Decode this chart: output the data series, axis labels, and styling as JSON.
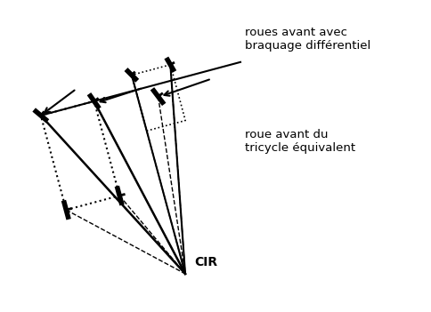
{
  "background_color": "#ffffff",
  "text_color": "#000000",
  "labels": {
    "roues_avant": "roues avant avec\nbraquage différentiel",
    "roue_avant": "roue avant du\ntricycle équivalent",
    "cir": "CIR"
  },
  "figsize": [
    4.85,
    3.51
  ],
  "dpi": 100
}
